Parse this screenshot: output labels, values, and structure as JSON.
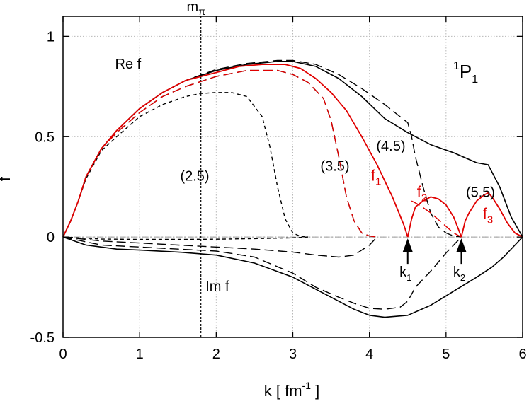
{
  "chart_data": {
    "type": "line",
    "xlabel": "k  [ fm",
    "xlabel_sup": "-1",
    "xlabel_close": " ]",
    "ylabel": "f",
    "xlim": [
      0,
      6
    ],
    "ylim": [
      -0.5,
      1.1
    ],
    "grid": true,
    "x_ticks": [
      0,
      1,
      2,
      3,
      4,
      5,
      6
    ],
    "x_tick_labels": [
      "0",
      "1",
      "2",
      "3",
      "4",
      "5",
      "6"
    ],
    "y_ticks": [
      -0.5,
      0,
      0.5,
      1
    ],
    "y_tick_labels": [
      "-0.5",
      "0",
      "0.5",
      "1"
    ],
    "partial_wave": {
      "sup": "1",
      "main": "P",
      "sub": "1"
    },
    "mpi": {
      "label": "m",
      "sub": "π",
      "x": 1.8
    },
    "annotations": {
      "re_f": "Re f",
      "im_f": "Im f",
      "lambda_labels": [
        {
          "text": "(2.5)",
          "x": 1.72,
          "y": 0.28
        },
        {
          "text": "(3.5)",
          "x": 3.55,
          "y": 0.33
        },
        {
          "text": "(4.5)",
          "x": 4.28,
          "y": 0.43
        },
        {
          "text": "(5.5)",
          "x": 5.45,
          "y": 0.2
        }
      ],
      "f_labels": [
        {
          "main": "f",
          "sub": "1",
          "x": 4.02,
          "y": 0.28
        },
        {
          "main": "f",
          "sub": "2",
          "x": 4.62,
          "y": 0.2
        },
        {
          "main": "f",
          "sub": "3",
          "x": 5.48,
          "y": 0.09
        }
      ],
      "arrows": [
        {
          "main": "k",
          "sub": "1",
          "x": 4.5
        },
        {
          "main": "k",
          "sub": "2",
          "x": 5.2
        }
      ]
    },
    "series": [
      {
        "style": "solid-black",
        "x": [
          0,
          0.1,
          0.2,
          0.3,
          0.5,
          0.7,
          1.0,
          1.3,
          1.6,
          2.0,
          2.4,
          2.8,
          3.0,
          3.3,
          3.6,
          3.9,
          4.2,
          4.5,
          4.8,
          5.1,
          5.4,
          5.55,
          5.7,
          5.85,
          6.0
        ],
        "y": [
          0,
          0.08,
          0.18,
          0.3,
          0.44,
          0.53,
          0.64,
          0.72,
          0.78,
          0.83,
          0.86,
          0.875,
          0.875,
          0.85,
          0.79,
          0.7,
          0.59,
          0.52,
          0.46,
          0.42,
          0.37,
          0.36,
          0.25,
          0.1,
          0
        ]
      },
      {
        "style": "solid-black",
        "x": [
          0,
          0.3,
          0.7,
          1.0,
          1.5,
          2.0,
          2.5,
          3.0,
          3.5,
          3.8,
          4.0,
          4.2,
          4.5,
          4.8,
          5.1,
          5.4,
          5.6,
          5.75,
          5.9,
          6.0
        ],
        "y": [
          0,
          -0.04,
          -0.06,
          -0.065,
          -0.075,
          -0.09,
          -0.13,
          -0.2,
          -0.3,
          -0.36,
          -0.39,
          -0.4,
          -0.39,
          -0.34,
          -0.27,
          -0.2,
          -0.15,
          -0.1,
          -0.04,
          0
        ]
      },
      {
        "style": "long-dash-black",
        "x": [
          0,
          0.1,
          0.2,
          0.3,
          0.5,
          0.7,
          1.0,
          1.3,
          1.6,
          2.0,
          2.4,
          2.8,
          3.0,
          3.3,
          3.6,
          3.9,
          4.2,
          4.4,
          4.5,
          4.55,
          4.6,
          4.7,
          4.8,
          4.9,
          5.0,
          5.1,
          5.2
        ],
        "y": [
          0,
          0.08,
          0.18,
          0.3,
          0.44,
          0.53,
          0.64,
          0.72,
          0.78,
          0.835,
          0.865,
          0.88,
          0.88,
          0.86,
          0.81,
          0.74,
          0.66,
          0.6,
          0.57,
          0.5,
          0.4,
          0.25,
          0.12,
          0.05,
          0.02,
          0.005,
          0
        ]
      },
      {
        "style": "long-dash-black",
        "x": [
          0,
          0.5,
          1.0,
          1.5,
          2.0,
          2.5,
          3.0,
          3.3,
          3.6,
          3.8,
          4.0,
          4.2,
          4.4,
          4.5,
          4.6,
          4.8,
          5.0,
          5.2
        ],
        "y": [
          0,
          -0.04,
          -0.05,
          -0.06,
          -0.07,
          -0.1,
          -0.18,
          -0.25,
          -0.3,
          -0.33,
          -0.355,
          -0.36,
          -0.35,
          -0.32,
          -0.25,
          -0.17,
          -0.08,
          0
        ]
      },
      {
        "style": "long-dash-black",
        "x": [
          0,
          0.1,
          0.2,
          0.3,
          0.5,
          0.7,
          1.0,
          1.3,
          1.6,
          2.0,
          2.4,
          2.8,
          3.0,
          3.2,
          3.4,
          3.5,
          3.6,
          3.7,
          3.8,
          3.9,
          4.0,
          4.1
        ],
        "y": [
          0,
          0.08,
          0.18,
          0.3,
          0.44,
          0.52,
          0.62,
          0.7,
          0.75,
          0.8,
          0.83,
          0.83,
          0.81,
          0.77,
          0.69,
          0.58,
          0.4,
          0.2,
          0.08,
          0.02,
          0.005,
          0
        ]
      },
      {
        "style": "long-dash-black",
        "x": [
          0,
          0.5,
          1.0,
          1.5,
          2.0,
          2.5,
          3.0,
          3.3,
          3.6,
          3.8,
          4.0,
          4.1
        ],
        "y": [
          0,
          -0.02,
          -0.03,
          -0.04,
          -0.05,
          -0.06,
          -0.075,
          -0.09,
          -0.1,
          -0.09,
          -0.04,
          0
        ]
      },
      {
        "style": "short-dash-black",
        "x": [
          0,
          0.1,
          0.2,
          0.3,
          0.5,
          0.7,
          1.0,
          1.3,
          1.6,
          1.8,
          2.0,
          2.2,
          2.4,
          2.6,
          2.7,
          2.8,
          2.9,
          3.0,
          3.1,
          3.2
        ],
        "y": [
          0,
          0.08,
          0.18,
          0.29,
          0.43,
          0.5,
          0.6,
          0.66,
          0.7,
          0.715,
          0.72,
          0.72,
          0.7,
          0.6,
          0.45,
          0.25,
          0.09,
          0.02,
          0.003,
          0
        ]
      },
      {
        "style": "short-dash-black",
        "x": [
          0,
          0.5,
          1.0,
          1.5,
          2.0,
          2.5,
          3.0,
          3.2
        ],
        "y": [
          0,
          -0.01,
          -0.012,
          -0.012,
          -0.011,
          -0.008,
          -0.004,
          0
        ]
      },
      {
        "style": "solid-red",
        "x": [
          0,
          0.1,
          0.2,
          0.3,
          0.5,
          0.7,
          1.0,
          1.3,
          1.6,
          2.0,
          2.3,
          2.6,
          2.9,
          3.1,
          3.3,
          3.5,
          3.7,
          3.9,
          4.1,
          4.3,
          4.45,
          4.5
        ],
        "y": [
          0,
          0.08,
          0.18,
          0.3,
          0.44,
          0.53,
          0.64,
          0.72,
          0.78,
          0.82,
          0.85,
          0.86,
          0.86,
          0.84,
          0.79,
          0.72,
          0.63,
          0.5,
          0.36,
          0.2,
          0.06,
          0
        ]
      },
      {
        "style": "solid-red",
        "x": [
          4.5,
          4.55,
          4.6,
          4.7,
          4.8,
          4.9,
          5.0,
          5.1,
          5.15,
          5.2
        ],
        "y": [
          0,
          0.09,
          0.15,
          0.18,
          0.2,
          0.19,
          0.16,
          0.1,
          0.05,
          0
        ]
      },
      {
        "style": "solid-red",
        "x": [
          5.2,
          5.25,
          5.3,
          5.4,
          5.5,
          5.55,
          5.6,
          5.7,
          5.8,
          5.9,
          6.0
        ],
        "y": [
          0,
          0.08,
          0.12,
          0.18,
          0.21,
          0.22,
          0.2,
          0.14,
          0.07,
          0.02,
          0
        ]
      },
      {
        "style": "long-dash-red",
        "x": [
          0,
          0.1,
          0.2,
          0.3,
          0.5,
          0.7,
          1.0,
          1.3,
          1.6,
          2.0,
          2.4,
          2.8,
          3.0,
          3.2,
          3.4,
          3.5,
          3.6,
          3.7,
          3.8,
          3.9,
          4.0,
          4.1
        ],
        "y": [
          0,
          0.08,
          0.18,
          0.3,
          0.44,
          0.52,
          0.62,
          0.7,
          0.75,
          0.8,
          0.83,
          0.83,
          0.81,
          0.77,
          0.69,
          0.58,
          0.4,
          0.2,
          0.08,
          0.02,
          0.005,
          0
        ]
      },
      {
        "style": "long-dash-red",
        "x": [
          4.55,
          4.65,
          4.8,
          4.95,
          5.1,
          5.2
        ],
        "y": [
          0.18,
          0.16,
          0.12,
          0.07,
          0.02,
          0
        ]
      }
    ]
  }
}
